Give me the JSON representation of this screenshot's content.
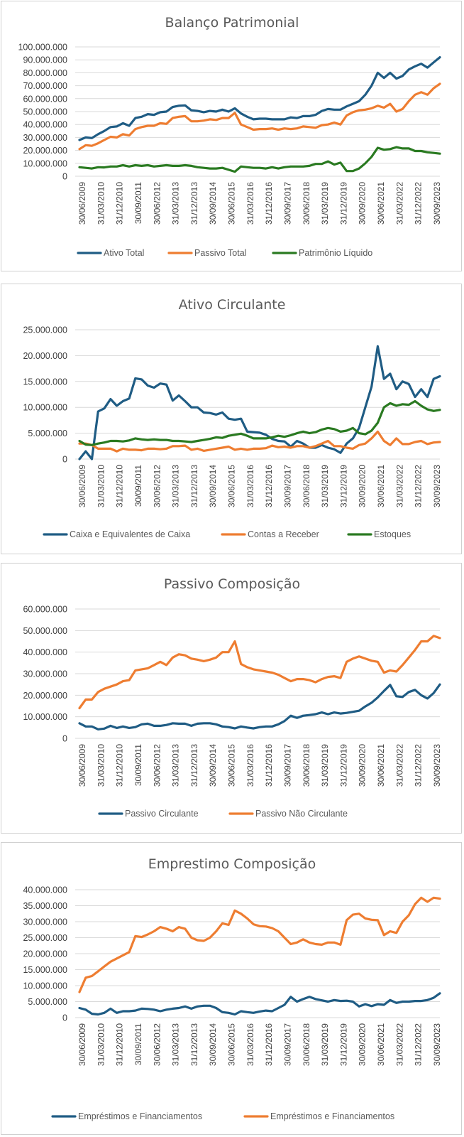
{
  "colors": {
    "blue": "#1f5c84",
    "orange": "#ee7d31",
    "green": "#2a7a21"
  },
  "chart_data": [
    {
      "type": "line",
      "title": "Balanço Patrimonial",
      "ylim": [
        0,
        100000000
      ],
      "y_ticks": [
        "0",
        "10.000.000",
        "20.000.000",
        "30.000.000",
        "40.000.000",
        "50.000.000",
        "60.000.000",
        "70.000.000",
        "80.000.000",
        "90.000.000",
        "100.000.000"
      ],
      "x_ticks": [
        "30/06/2009",
        "31/03/2010",
        "31/12/2010",
        "30/09/2011",
        "30/06/2012",
        "31/03/2013",
        "31/12/2013",
        "30/09/2014",
        "30/06/2015",
        "31/03/2016",
        "31/12/2016",
        "30/09/2017",
        "30/06/2018",
        "31/03/2019",
        "31/12/2019",
        "30/09/2020",
        "30/06/2021",
        "31/03/2022",
        "31/12/2022",
        "30/09/2023"
      ],
      "grid": true,
      "legend_position": "bottom",
      "series": [
        {
          "name": "Ativo Total",
          "color": "#1f5c84",
          "values": [
            28000000,
            30000000,
            29500000,
            32500000,
            35000000,
            38000000,
            38500000,
            41000000,
            39000000,
            45000000,
            46000000,
            48000000,
            47500000,
            49500000,
            50000000,
            53500000,
            54500000,
            54800000,
            51000000,
            50500000,
            49500000,
            50500000,
            50000000,
            51500000,
            50000000,
            52500000,
            48500000,
            46000000,
            44000000,
            44500000,
            44500000,
            44000000,
            44000000,
            44000000,
            45500000,
            45000000,
            46500000,
            46500000,
            47500000,
            50500000,
            52000000,
            51500000,
            51500000,
            54000000,
            56000000,
            58000000,
            63000000,
            70000000,
            80000000,
            76000000,
            80000000,
            75500000,
            77500000,
            82500000,
            85000000,
            87000000,
            84000000,
            88000000,
            92000000
          ]
        },
        {
          "name": "Passivo Total",
          "color": "#ee7d31",
          "values": [
            21000000,
            24000000,
            23500000,
            25500000,
            28000000,
            30500000,
            30000000,
            32500000,
            31500000,
            36500000,
            38000000,
            39000000,
            39000000,
            41000000,
            40500000,
            45000000,
            46000000,
            46500000,
            42500000,
            42500000,
            43000000,
            44000000,
            43500000,
            45000000,
            45000000,
            49000000,
            40000000,
            38000000,
            36000000,
            36500000,
            36500000,
            37000000,
            36000000,
            37000000,
            36500000,
            37000000,
            38500000,
            38000000,
            37500000,
            39500000,
            40000000,
            41500000,
            40000000,
            47000000,
            49500000,
            51000000,
            51500000,
            52500000,
            54500000,
            53000000,
            56000000,
            50000000,
            52000000,
            58000000,
            63000000,
            65000000,
            63000000,
            68000000,
            71500000
          ]
        },
        {
          "name": "Patrimônio Líquido",
          "color": "#2a7a21",
          "values": [
            7000000,
            6500000,
            6000000,
            7000000,
            6800000,
            7500000,
            7500000,
            8500000,
            7500000,
            8500000,
            8000000,
            8500000,
            7500000,
            8000000,
            8500000,
            8000000,
            8000000,
            8500000,
            8000000,
            7000000,
            6500000,
            6000000,
            6000000,
            6500000,
            5000000,
            3500000,
            7500000,
            7000000,
            6500000,
            6500000,
            6000000,
            7000000,
            6000000,
            7000000,
            7500000,
            7500000,
            7500000,
            8000000,
            9500000,
            9500000,
            11500000,
            9000000,
            10500000,
            4000000,
            4000000,
            6000000,
            10000000,
            15000000,
            22000000,
            20500000,
            21000000,
            22500000,
            21500000,
            21500000,
            19500000,
            19500000,
            18500000,
            18000000,
            17500000
          ]
        }
      ]
    },
    {
      "type": "line",
      "title": "Ativo Circulante",
      "ylim": [
        0,
        25000000
      ],
      "y_ticks": [
        "0",
        "5.000.000",
        "10.000.000",
        "15.000.000",
        "20.000.000",
        "25.000.000"
      ],
      "x_ticks": [
        "30/06/2009",
        "31/03/2010",
        "31/12/2010",
        "30/09/2011",
        "30/06/2012",
        "31/03/2013",
        "31/12/2013",
        "30/09/2014",
        "30/06/2015",
        "31/03/2016",
        "31/12/2016",
        "30/09/2017",
        "30/06/2018",
        "31/03/2019",
        "31/12/2019",
        "30/09/2020",
        "30/06/2021",
        "31/03/2022",
        "31/12/2022",
        "30/09/2023"
      ],
      "grid": true,
      "legend_position": "bottom",
      "series": [
        {
          "name": "Caixa e Equivalentes de Caixa",
          "color": "#1f5c84",
          "values": [
            0,
            1500000,
            0,
            9200000,
            9800000,
            11600000,
            10300000,
            11200000,
            11700000,
            15600000,
            15400000,
            14200000,
            13800000,
            14600000,
            14400000,
            11300000,
            12300000,
            11200000,
            10000000,
            10000000,
            9000000,
            8900000,
            8600000,
            9000000,
            7800000,
            7600000,
            7800000,
            5300000,
            5200000,
            5100000,
            4700000,
            3900000,
            3500000,
            3400000,
            2400000,
            3500000,
            3000000,
            2200000,
            2200000,
            2700000,
            2200000,
            1900000,
            1200000,
            3000000,
            4000000,
            6000000,
            10000000,
            14000000,
            21800000,
            15500000,
            16500000,
            13500000,
            15000000,
            14500000,
            12000000,
            13500000,
            12000000,
            15500000,
            16000000
          ]
        },
        {
          "name": "Contas a Receber",
          "color": "#ee7d31",
          "values": [
            3000000,
            3000000,
            2700000,
            2000000,
            2000000,
            2000000,
            1500000,
            2000000,
            1800000,
            1800000,
            1700000,
            2000000,
            2000000,
            1900000,
            2000000,
            2500000,
            2500000,
            2600000,
            1800000,
            2000000,
            1600000,
            1800000,
            2000000,
            2200000,
            2400000,
            1800000,
            2000000,
            1800000,
            2000000,
            2000000,
            2100000,
            2600000,
            2300000,
            2400000,
            2200000,
            2500000,
            2500000,
            2200000,
            2500000,
            3000000,
            3500000,
            2500000,
            2500000,
            2200000,
            2000000,
            2700000,
            3000000,
            4000000,
            5300000,
            3500000,
            2700000,
            4000000,
            2900000,
            2900000,
            3300000,
            3500000,
            2900000,
            3200000,
            3300000
          ]
        },
        {
          "name": "Estoques",
          "color": "#2a7a21",
          "values": [
            3500000,
            2800000,
            2700000,
            3000000,
            3200000,
            3500000,
            3500000,
            3400000,
            3600000,
            4000000,
            3800000,
            3700000,
            3800000,
            3700000,
            3700000,
            3500000,
            3500000,
            3400000,
            3300000,
            3500000,
            3700000,
            3900000,
            4200000,
            4100000,
            4500000,
            4700000,
            4900000,
            4500000,
            4000000,
            4000000,
            4000000,
            4200000,
            4500000,
            4300000,
            4600000,
            5000000,
            5300000,
            5000000,
            5200000,
            5700000,
            6000000,
            5800000,
            5300000,
            5500000,
            6000000,
            5000000,
            4800000,
            5500000,
            7000000,
            10000000,
            10800000,
            10300000,
            10600000,
            10500000,
            11200000,
            10300000,
            9600000,
            9300000,
            9500000
          ]
        }
      ]
    },
    {
      "type": "line",
      "title": "Passivo Composição",
      "ylim": [
        0,
        60000000
      ],
      "y_ticks": [
        "0",
        "10.000.000",
        "20.000.000",
        "30.000.000",
        "40.000.000",
        "50.000.000",
        "60.000.000"
      ],
      "x_ticks": [
        "30/06/2009",
        "31/03/2010",
        "31/12/2010",
        "30/09/2011",
        "30/06/2012",
        "31/03/2013",
        "31/12/2013",
        "30/09/2014",
        "30/06/2015",
        "31/03/2016",
        "31/12/2016",
        "30/09/2017",
        "30/06/2018",
        "31/03/2019",
        "31/12/2019",
        "30/09/2020",
        "30/06/2021",
        "31/03/2022",
        "31/12/2022",
        "30/09/2023"
      ],
      "grid": true,
      "legend_position": "bottom",
      "series": [
        {
          "name": "Passivo Circulante",
          "color": "#1f5c84",
          "values": [
            7000000,
            5500000,
            5500000,
            4200000,
            4500000,
            5800000,
            4800000,
            5500000,
            4800000,
            5200000,
            6500000,
            6800000,
            5800000,
            5800000,
            6200000,
            7000000,
            6800000,
            6800000,
            5800000,
            6800000,
            7000000,
            7000000,
            6500000,
            5500000,
            5200000,
            4600000,
            5500000,
            5000000,
            4600000,
            5200000,
            5500000,
            5500000,
            6500000,
            8000000,
            10500000,
            9500000,
            10500000,
            10800000,
            11200000,
            12000000,
            11200000,
            12000000,
            11500000,
            11800000,
            12300000,
            12800000,
            14800000,
            16500000,
            19000000,
            22000000,
            24800000,
            19500000,
            19200000,
            21500000,
            22500000,
            20000000,
            18500000,
            21000000,
            25000000
          ]
        },
        {
          "name": "Passivo Não Circulante",
          "color": "#ee7d31",
          "values": [
            14000000,
            18000000,
            18000000,
            21500000,
            23000000,
            24000000,
            25000000,
            26500000,
            27000000,
            31500000,
            32000000,
            32500000,
            34000000,
            35500000,
            34000000,
            37500000,
            39000000,
            38500000,
            37000000,
            36500000,
            35800000,
            36500000,
            37500000,
            40000000,
            40000000,
            45000000,
            34500000,
            33000000,
            32000000,
            31500000,
            31000000,
            30500000,
            29500000,
            28000000,
            26500000,
            27500000,
            27500000,
            27000000,
            26000000,
            27500000,
            28500000,
            28800000,
            28000000,
            35500000,
            37000000,
            38000000,
            37000000,
            36000000,
            35500000,
            30500000,
            31500000,
            31000000,
            34000000,
            37500000,
            41000000,
            45000000,
            45000000,
            47500000,
            46500000
          ]
        }
      ]
    },
    {
      "type": "line",
      "title": "Emprestimo Composição",
      "ylim": [
        0,
        40000000
      ],
      "y_ticks": [
        "0",
        "5.000.000",
        "10.000.000",
        "15.000.000",
        "20.000.000",
        "25.000.000",
        "30.000.000",
        "35.000.000",
        "40.000.000"
      ],
      "x_ticks": [
        "30/06/2009",
        "31/03/2010",
        "31/12/2010",
        "30/09/2011",
        "30/06/2012",
        "31/03/2013",
        "31/12/2013",
        "30/09/2014",
        "30/06/2015",
        "31/03/2016",
        "31/12/2016",
        "30/09/2017",
        "30/06/2018",
        "31/03/2019",
        "31/12/2019",
        "30/09/2020",
        "30/06/2021",
        "31/03/2022",
        "31/12/2022",
        "30/09/2023"
      ],
      "grid": true,
      "legend_position": "bottom",
      "series": [
        {
          "name": "Empréstimos e Financiamentos",
          "color": "#1f5c84",
          "values": [
            3000000,
            2500000,
            1200000,
            1000000,
            1500000,
            2800000,
            1500000,
            2000000,
            2000000,
            2200000,
            2800000,
            2700000,
            2500000,
            2000000,
            2500000,
            2800000,
            3000000,
            3500000,
            2800000,
            3500000,
            3700000,
            3700000,
            3000000,
            1700000,
            1500000,
            1000000,
            2000000,
            1700000,
            1500000,
            1900000,
            2200000,
            2000000,
            3000000,
            4000000,
            6500000,
            5000000,
            5800000,
            6500000,
            5800000,
            5400000,
            5000000,
            5500000,
            5200000,
            5300000,
            5000000,
            3500000,
            4200000,
            3600000,
            4200000,
            4000000,
            5500000,
            4600000,
            5000000,
            5000000,
            5200000,
            5200000,
            5500000,
            6200000,
            7600000
          ]
        },
        {
          "name": "Empréstimos e Financiamentos",
          "color": "#ee7d31",
          "values": [
            8000000,
            12500000,
            13000000,
            14500000,
            16000000,
            17500000,
            18500000,
            19500000,
            20500000,
            25500000,
            25200000,
            26000000,
            27000000,
            28300000,
            27800000,
            27000000,
            28300000,
            27800000,
            25000000,
            24200000,
            24000000,
            25000000,
            27000000,
            29500000,
            29000000,
            33500000,
            32500000,
            31000000,
            29200000,
            28600000,
            28500000,
            28000000,
            27000000,
            25000000,
            23000000,
            23500000,
            24500000,
            23500000,
            23000000,
            22800000,
            23500000,
            23500000,
            22800000,
            30500000,
            32200000,
            32500000,
            31000000,
            30600000,
            30500000,
            25800000,
            27000000,
            26500000,
            30000000,
            32000000,
            35500000,
            37500000,
            36200000,
            37500000,
            37200000
          ]
        }
      ]
    }
  ]
}
